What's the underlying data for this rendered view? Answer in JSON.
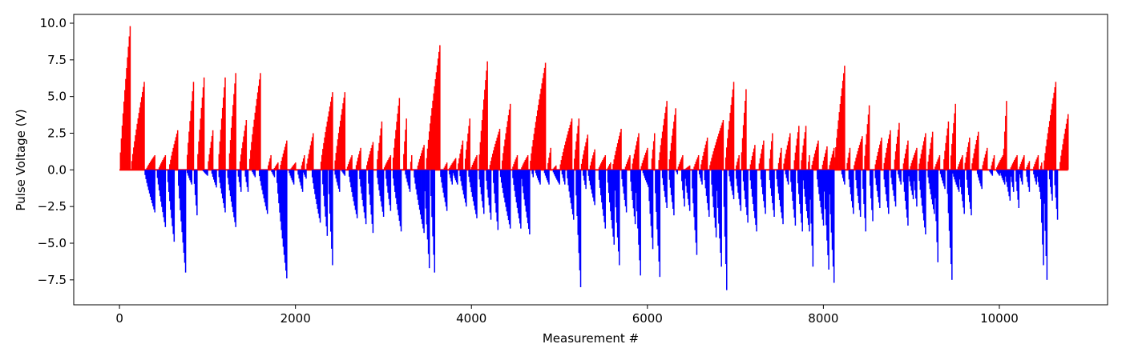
{
  "chart_data": {
    "type": "bar",
    "title": "",
    "xlabel": "Measurement #",
    "ylabel": "Pulse Voltage (V)",
    "xlim": [
      -520,
      11230
    ],
    "ylim": [
      -9.2,
      10.6
    ],
    "x_ticks": [
      0,
      2000,
      4000,
      6000,
      8000,
      10000
    ],
    "x_tick_labels": [
      "0",
      "2000",
      "4000",
      "6000",
      "8000",
      "10000"
    ],
    "y_ticks": [
      -7.5,
      -5.0,
      -2.5,
      0.0,
      2.5,
      5.0,
      7.5,
      10.0
    ],
    "y_tick_labels": [
      "−7.5",
      "−5.0",
      "−2.5",
      "0.0",
      "2.5",
      "5.0",
      "7.5",
      "10.0"
    ],
    "grid": false,
    "colors": {
      "positive": "#ff0000",
      "negative": "#0000ff"
    },
    "series": [
      {
        "polarity": "positive",
        "color": "#ff0000",
        "ramps": [
          [
            0,
            120,
            9.8
          ],
          [
            130,
            280,
            6.0
          ],
          [
            300,
            400,
            1.0
          ],
          [
            440,
            520,
            1.0
          ],
          [
            560,
            660,
            2.7
          ],
          [
            760,
            840,
            6.0
          ],
          [
            880,
            960,
            6.3
          ],
          [
            1000,
            1060,
            2.7
          ],
          [
            1120,
            1200,
            6.3
          ],
          [
            1240,
            1320,
            6.6
          ],
          [
            1360,
            1440,
            3.4
          ],
          [
            1470,
            1600,
            6.6
          ],
          [
            1680,
            1720,
            1.0
          ],
          [
            1750,
            1800,
            0.5
          ],
          [
            1820,
            1900,
            2.0
          ],
          [
            1940,
            2000,
            0.5
          ],
          [
            2060,
            2100,
            1.0
          ],
          [
            2120,
            2200,
            2.5
          ],
          [
            2280,
            2420,
            5.3
          ],
          [
            2440,
            2560,
            5.3
          ],
          [
            2580,
            2640,
            1.0
          ],
          [
            2680,
            2740,
            1.5
          ],
          [
            2800,
            2880,
            1.9
          ],
          [
            2920,
            2980,
            3.3
          ],
          [
            3000,
            3080,
            1.0
          ],
          [
            3100,
            3180,
            4.9
          ],
          [
            3220,
            3260,
            3.5
          ],
          [
            3300,
            3320,
            1.0
          ],
          [
            3380,
            3460,
            1.7
          ],
          [
            3480,
            3640,
            8.5
          ],
          [
            3680,
            3720,
            0.5
          ],
          [
            3740,
            3820,
            0.8
          ],
          [
            3840,
            3900,
            2.0
          ],
          [
            3920,
            3980,
            3.5
          ],
          [
            3990,
            4060,
            1.0
          ],
          [
            4080,
            4180,
            7.4
          ],
          [
            4200,
            4320,
            2.8
          ],
          [
            4340,
            4440,
            4.5
          ],
          [
            4460,
            4520,
            1.0
          ],
          [
            4560,
            4640,
            1.0
          ],
          [
            4660,
            4840,
            7.3
          ],
          [
            4860,
            4900,
            1.5
          ],
          [
            4920,
            4960,
            0.3
          ],
          [
            5000,
            5140,
            3.5
          ],
          [
            5160,
            5220,
            3.5
          ],
          [
            5240,
            5320,
            2.4
          ],
          [
            5340,
            5400,
            1.4
          ],
          [
            5440,
            5520,
            1.0
          ],
          [
            5540,
            5580,
            0.5
          ],
          [
            5600,
            5700,
            2.8
          ],
          [
            5740,
            5800,
            1.0
          ],
          [
            5820,
            5900,
            2.5
          ],
          [
            5920,
            6000,
            1.5
          ],
          [
            6040,
            6080,
            2.5
          ],
          [
            6120,
            6220,
            4.7
          ],
          [
            6240,
            6320,
            4.2
          ],
          [
            6340,
            6400,
            1.0
          ],
          [
            6420,
            6480,
            0.3
          ],
          [
            6520,
            6580,
            1.0
          ],
          [
            6600,
            6680,
            2.2
          ],
          [
            6700,
            6860,
            3.4
          ],
          [
            6880,
            6980,
            6.0
          ],
          [
            7000,
            7040,
            1.0
          ],
          [
            7060,
            7120,
            5.5
          ],
          [
            7160,
            7220,
            1.7
          ],
          [
            7260,
            7320,
            2.0
          ],
          [
            7380,
            7420,
            2.5
          ],
          [
            7480,
            7520,
            1.5
          ],
          [
            7540,
            7620,
            2.5
          ],
          [
            7660,
            7720,
            3.0
          ],
          [
            7740,
            7800,
            3.0
          ],
          [
            7820,
            7840,
            1.0
          ],
          [
            7860,
            7940,
            2.0
          ],
          [
            7980,
            8040,
            1.6
          ],
          [
            8060,
            8120,
            1.5
          ],
          [
            8120,
            8240,
            7.1
          ],
          [
            8260,
            8300,
            1.5
          ],
          [
            8340,
            8440,
            2.3
          ],
          [
            8460,
            8520,
            4.4
          ],
          [
            8580,
            8660,
            2.2
          ],
          [
            8680,
            8760,
            2.7
          ],
          [
            8800,
            8860,
            3.2
          ],
          [
            8900,
            8960,
            2.0
          ],
          [
            8980,
            9060,
            1.5
          ],
          [
            9080,
            9160,
            2.5
          ],
          [
            9180,
            9240,
            2.6
          ],
          [
            9260,
            9320,
            1.0
          ],
          [
            9360,
            9420,
            3.3
          ],
          [
            9440,
            9500,
            4.5
          ],
          [
            9520,
            9580,
            1.0
          ],
          [
            9600,
            9660,
            2.2
          ],
          [
            9680,
            9760,
            2.6
          ],
          [
            9800,
            9860,
            1.5
          ],
          [
            9900,
            9940,
            1.0
          ],
          [
            9960,
            10040,
            1.0
          ],
          [
            10040,
            10080,
            4.7
          ],
          [
            10120,
            10200,
            1.0
          ],
          [
            10220,
            10280,
            1.0
          ],
          [
            10300,
            10340,
            0.6
          ],
          [
            10380,
            10440,
            1.0
          ],
          [
            10460,
            10480,
            0.5
          ],
          [
            10500,
            10640,
            6.0
          ],
          [
            10680,
            10780,
            3.8
          ]
        ]
      },
      {
        "polarity": "negative",
        "color": "#0000ff",
        "ramps": [
          [
            280,
            400,
            -2.9
          ],
          [
            420,
            520,
            -3.9
          ],
          [
            540,
            620,
            -4.9
          ],
          [
            660,
            750,
            -7.0
          ],
          [
            760,
            820,
            -1.0
          ],
          [
            840,
            880,
            -3.1
          ],
          [
            940,
            1000,
            -0.4
          ],
          [
            1040,
            1100,
            -1.2
          ],
          [
            1120,
            1200,
            -2.9
          ],
          [
            1220,
            1320,
            -3.9
          ],
          [
            1340,
            1380,
            -1.5
          ],
          [
            1420,
            1460,
            -1.5
          ],
          [
            1500,
            1540,
            -0.5
          ],
          [
            1580,
            1680,
            -3.0
          ],
          [
            1720,
            1760,
            -0.5
          ],
          [
            1780,
            1900,
            -7.4
          ],
          [
            1920,
            1980,
            -1.0
          ],
          [
            2020,
            2080,
            -1.5
          ],
          [
            2080,
            2120,
            -0.6
          ],
          [
            2180,
            2280,
            -3.6
          ],
          [
            2300,
            2360,
            -4.5
          ],
          [
            2370,
            2420,
            -6.5
          ],
          [
            2440,
            2500,
            -1.5
          ],
          [
            2520,
            2560,
            -0.4
          ],
          [
            2600,
            2700,
            -3.3
          ],
          [
            2720,
            2800,
            -3.7
          ],
          [
            2820,
            2880,
            -4.3
          ],
          [
            2920,
            3000,
            -3.2
          ],
          [
            3020,
            3080,
            -2.8
          ],
          [
            3100,
            3200,
            -4.2
          ],
          [
            3240,
            3300,
            -1.5
          ],
          [
            3340,
            3460,
            -4.3
          ],
          [
            3460,
            3520,
            -6.7
          ],
          [
            3530,
            3580,
            -7.0
          ],
          [
            3640,
            3720,
            -2.8
          ],
          [
            3740,
            3780,
            -1.0
          ],
          [
            3780,
            3840,
            -1.0
          ],
          [
            3860,
            3940,
            -2.5
          ],
          [
            3960,
            4060,
            -3.3
          ],
          [
            4080,
            4140,
            -3.0
          ],
          [
            4160,
            4220,
            -3.4
          ],
          [
            4240,
            4300,
            -4.1
          ],
          [
            4320,
            4440,
            -4.0
          ],
          [
            4460,
            4560,
            -4.0
          ],
          [
            4560,
            4660,
            -4.4
          ],
          [
            4680,
            4700,
            -0.5
          ],
          [
            4720,
            4780,
            -1.0
          ],
          [
            4820,
            4880,
            -1.0
          ],
          [
            4920,
            5000,
            -1.0
          ],
          [
            5020,
            5060,
            -1.0
          ],
          [
            5080,
            5160,
            -3.4
          ],
          [
            5180,
            5240,
            -8.0
          ],
          [
            5260,
            5300,
            -1.3
          ],
          [
            5320,
            5400,
            -2.4
          ],
          [
            5440,
            5520,
            -4.0
          ],
          [
            5540,
            5620,
            -5.1
          ],
          [
            5620,
            5680,
            -6.5
          ],
          [
            5700,
            5760,
            -2.9
          ],
          [
            5800,
            5860,
            -3.7
          ],
          [
            5860,
            5920,
            -7.2
          ],
          [
            5940,
            6000,
            -1.0
          ],
          [
            6000,
            6060,
            -5.4
          ],
          [
            6080,
            6140,
            -7.3
          ],
          [
            6160,
            6220,
            -2.6
          ],
          [
            6240,
            6300,
            -3.1
          ],
          [
            6320,
            6340,
            -0.3
          ],
          [
            6380,
            6420,
            -2.5
          ],
          [
            6420,
            6480,
            -2.8
          ],
          [
            6500,
            6560,
            -5.8
          ],
          [
            6580,
            6620,
            -1.0
          ],
          [
            6640,
            6700,
            -3.2
          ],
          [
            6720,
            6780,
            -4.6
          ],
          [
            6780,
            6840,
            -6.6
          ],
          [
            6860,
            6900,
            -8.2
          ],
          [
            6920,
            6980,
            -2.0
          ],
          [
            7000,
            7060,
            -2.8
          ],
          [
            7080,
            7140,
            -3.6
          ],
          [
            7160,
            7240,
            -4.2
          ],
          [
            7280,
            7340,
            -3.0
          ],
          [
            7380,
            7440,
            -3.2
          ],
          [
            7460,
            7540,
            -3.7
          ],
          [
            7560,
            7600,
            -1.0
          ],
          [
            7620,
            7680,
            -3.8
          ],
          [
            7700,
            7760,
            -4.2
          ],
          [
            7760,
            7840,
            -4.2
          ],
          [
            7840,
            7880,
            -6.6
          ],
          [
            7920,
            8000,
            -3.8
          ],
          [
            8000,
            8060,
            -6.8
          ],
          [
            8060,
            8120,
            -7.7
          ],
          [
            8200,
            8240,
            -1.0
          ],
          [
            8280,
            8340,
            -3.0
          ],
          [
            8360,
            8420,
            -3.2
          ],
          [
            8440,
            8480,
            -4.2
          ],
          [
            8520,
            8560,
            -3.5
          ],
          [
            8580,
            8640,
            -2.6
          ],
          [
            8680,
            8740,
            -3.0
          ],
          [
            8760,
            8820,
            -2.5
          ],
          [
            8840,
            8880,
            -1.0
          ],
          [
            8900,
            8960,
            -3.8
          ],
          [
            8960,
            9020,
            -2.0
          ],
          [
            9020,
            9060,
            -2.5
          ],
          [
            9080,
            9160,
            -4.4
          ],
          [
            9180,
            9260,
            -3.0
          ],
          [
            9260,
            9300,
            -6.3
          ],
          [
            9320,
            9380,
            -1.3
          ],
          [
            9400,
            9460,
            -7.5
          ],
          [
            9460,
            9540,
            -1.5
          ],
          [
            9540,
            9600,
            -3.0
          ],
          [
            9620,
            9680,
            -3.1
          ],
          [
            9740,
            9800,
            -1.3
          ],
          [
            9880,
            9920,
            -0.4
          ],
          [
            9960,
            10000,
            -0.4
          ],
          [
            10000,
            10060,
            -1.0
          ],
          [
            10060,
            10120,
            -2.1
          ],
          [
            10120,
            10160,
            -1.5
          ],
          [
            10180,
            10220,
            -2.6
          ],
          [
            10220,
            10260,
            -1.0
          ],
          [
            10300,
            10340,
            -1.5
          ],
          [
            10380,
            10420,
            -1.0
          ],
          [
            10420,
            10460,
            -1.5
          ],
          [
            10460,
            10500,
            -6.5
          ],
          [
            10500,
            10540,
            -7.5
          ],
          [
            10560,
            10600,
            -2.1
          ],
          [
            10620,
            10660,
            -3.4
          ]
        ]
      }
    ]
  }
}
